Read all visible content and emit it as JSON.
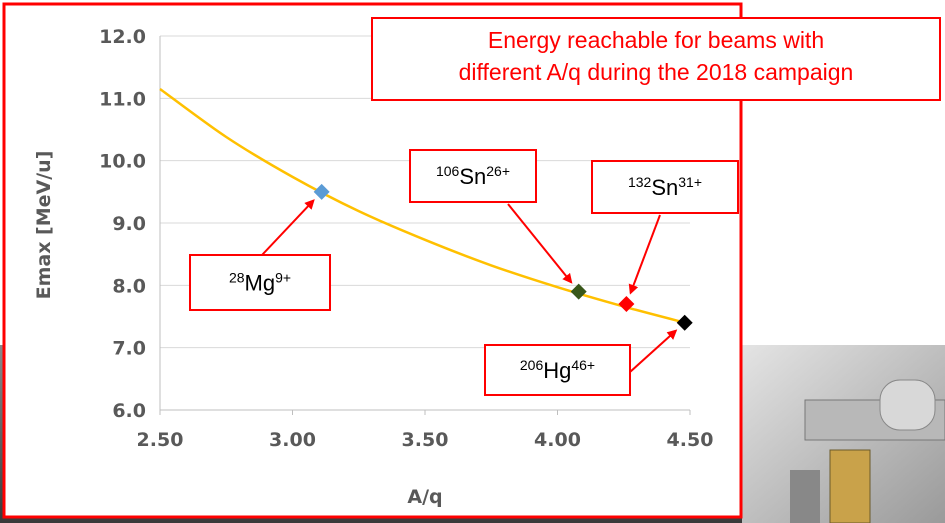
{
  "chart_data": {
    "type": "line",
    "title_lines": [
      "Energy reachable for beams with",
      "different A/q during the 2018 campaign"
    ],
    "x_label": "A/q",
    "y_label": "Emax  [MeV/u]",
    "xlim": [
      2.5,
      4.5
    ],
    "ylim": [
      6.0,
      12.0
    ],
    "xticks": [
      {
        "value": 2.5,
        "label": "2.50"
      },
      {
        "value": 3.0,
        "label": "3.00"
      },
      {
        "value": 3.5,
        "label": "3.50"
      },
      {
        "value": 4.0,
        "label": "4.00"
      },
      {
        "value": 4.5,
        "label": "4.50"
      }
    ],
    "yticks": [
      {
        "value": 6,
        "label": "6.0"
      },
      {
        "value": 7,
        "label": "7.0"
      },
      {
        "value": 8,
        "label": "8.0"
      },
      {
        "value": 9,
        "label": "9.0"
      },
      {
        "value": 10,
        "label": "10.0"
      },
      {
        "value": 11,
        "label": "11.0"
      },
      {
        "value": 12,
        "label": "12.0"
      }
    ],
    "grid": true,
    "series": [
      {
        "color": "#ffc000",
        "x": [
          2.5,
          2.75,
          3.0,
          3.25,
          3.5,
          3.75,
          4.0,
          4.25,
          4.5
        ],
        "values": [
          11.15,
          10.38,
          9.74,
          9.19,
          8.73,
          8.32,
          7.97,
          7.66,
          7.38
        ]
      }
    ],
    "points": {
      "x": [
        3.11,
        4.08,
        4.26,
        4.48
      ],
      "values": [
        9.5,
        7.9,
        7.7,
        7.4
      ],
      "colors": [
        "#5b9bd5",
        "#38571a",
        "#ff0000",
        "#000000"
      ],
      "labels": [
        {
          "mass": "28",
          "element": "Mg",
          "charge": "9+"
        },
        {
          "mass": "106",
          "element": "Sn",
          "charge": "26+"
        },
        {
          "mass": "132",
          "element": "Sn",
          "charge": "31+"
        },
        {
          "mass": "206",
          "element": "Hg",
          "charge": "46+"
        }
      ]
    }
  }
}
